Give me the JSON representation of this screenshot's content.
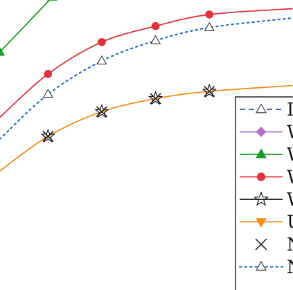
{
  "chart_data": {
    "type": "line",
    "title": "",
    "xlabel": "",
    "ylabel": "",
    "x": [
      1,
      2,
      3,
      4,
      5
    ],
    "xlim": [
      0.1,
      5.55
    ],
    "ylim": [
      0,
      10
    ],
    "grid": false,
    "legend_position": "bottom-right",
    "series": [
      {
        "key": "green-triangle",
        "label": "W",
        "color": "#1a9a2a",
        "dash": "solid",
        "marker": "triangle-up-filled",
        "points": [
          [
            0.1,
            8.2
          ],
          [
            1.08,
            10.1
          ]
        ]
      },
      {
        "key": "red-circle",
        "label": "W",
        "color": "#e0303a",
        "dash": "solid",
        "marker": "circle-filled",
        "points": [
          [
            0.1,
            5.95
          ],
          [
            1.0,
            7.45
          ],
          [
            2.0,
            8.55
          ],
          [
            3.0,
            9.1
          ],
          [
            4.0,
            9.5
          ],
          [
            5.55,
            9.7
          ]
        ]
      },
      {
        "key": "blue-dotted-triangle",
        "label": "N",
        "color": "#2c6fc4",
        "dash": "dotted",
        "marker": "triangle-up-open",
        "points": [
          [
            0.1,
            5.2
          ],
          [
            1.0,
            6.75
          ],
          [
            2.0,
            7.9
          ],
          [
            3.0,
            8.6
          ],
          [
            4.0,
            9.05
          ],
          [
            5.55,
            9.38
          ]
        ]
      },
      {
        "key": "orange-down-triangle",
        "label": "U",
        "color": "#f28a1a",
        "dash": "solid",
        "marker": "none",
        "points": [
          [
            0.1,
            4.1
          ],
          [
            1.0,
            5.3
          ],
          [
            2.0,
            6.15
          ],
          [
            3.0,
            6.6
          ],
          [
            4.0,
            6.85
          ],
          [
            5.55,
            7.05
          ]
        ]
      },
      {
        "key": "black-star",
        "label": "W",
        "color": "#111111",
        "dash": "none",
        "marker": "star-open",
        "points": [
          [
            1.0,
            5.3
          ],
          [
            2.0,
            6.15
          ],
          [
            3.0,
            6.6
          ],
          [
            4.0,
            6.85
          ]
        ]
      },
      {
        "key": "black-x",
        "label": "N",
        "color": "#111111",
        "dash": "none",
        "marker": "x",
        "points": [
          [
            1.0,
            5.3
          ],
          [
            2.0,
            6.15
          ],
          [
            3.0,
            6.6
          ],
          [
            4.0,
            6.85
          ]
        ]
      }
    ],
    "legend": [
      {
        "label": "I",
        "color": "#2c4faa",
        "dash": "dashed",
        "marker": "triangle-up-open"
      },
      {
        "label": "W",
        "color": "#b070c8",
        "dash": "solid",
        "marker": "diamond-filled"
      },
      {
        "label": "W",
        "color": "#1a9a2a",
        "dash": "solid",
        "marker": "triangle-up-filled"
      },
      {
        "label": "W",
        "color": "#e0303a",
        "dash": "solid",
        "marker": "circle-filled"
      },
      {
        "label": "W",
        "color": "#111111",
        "dash": "solid",
        "marker": "star-open"
      },
      {
        "label": "U",
        "color": "#f28a1a",
        "dash": "solid",
        "marker": "triangle-down-filled"
      },
      {
        "label": "N",
        "color": "#111111",
        "dash": "none",
        "marker": "x"
      },
      {
        "label": "N",
        "color": "#2c6fc4",
        "dash": "dotted",
        "marker": "triangle-up-open"
      }
    ]
  }
}
